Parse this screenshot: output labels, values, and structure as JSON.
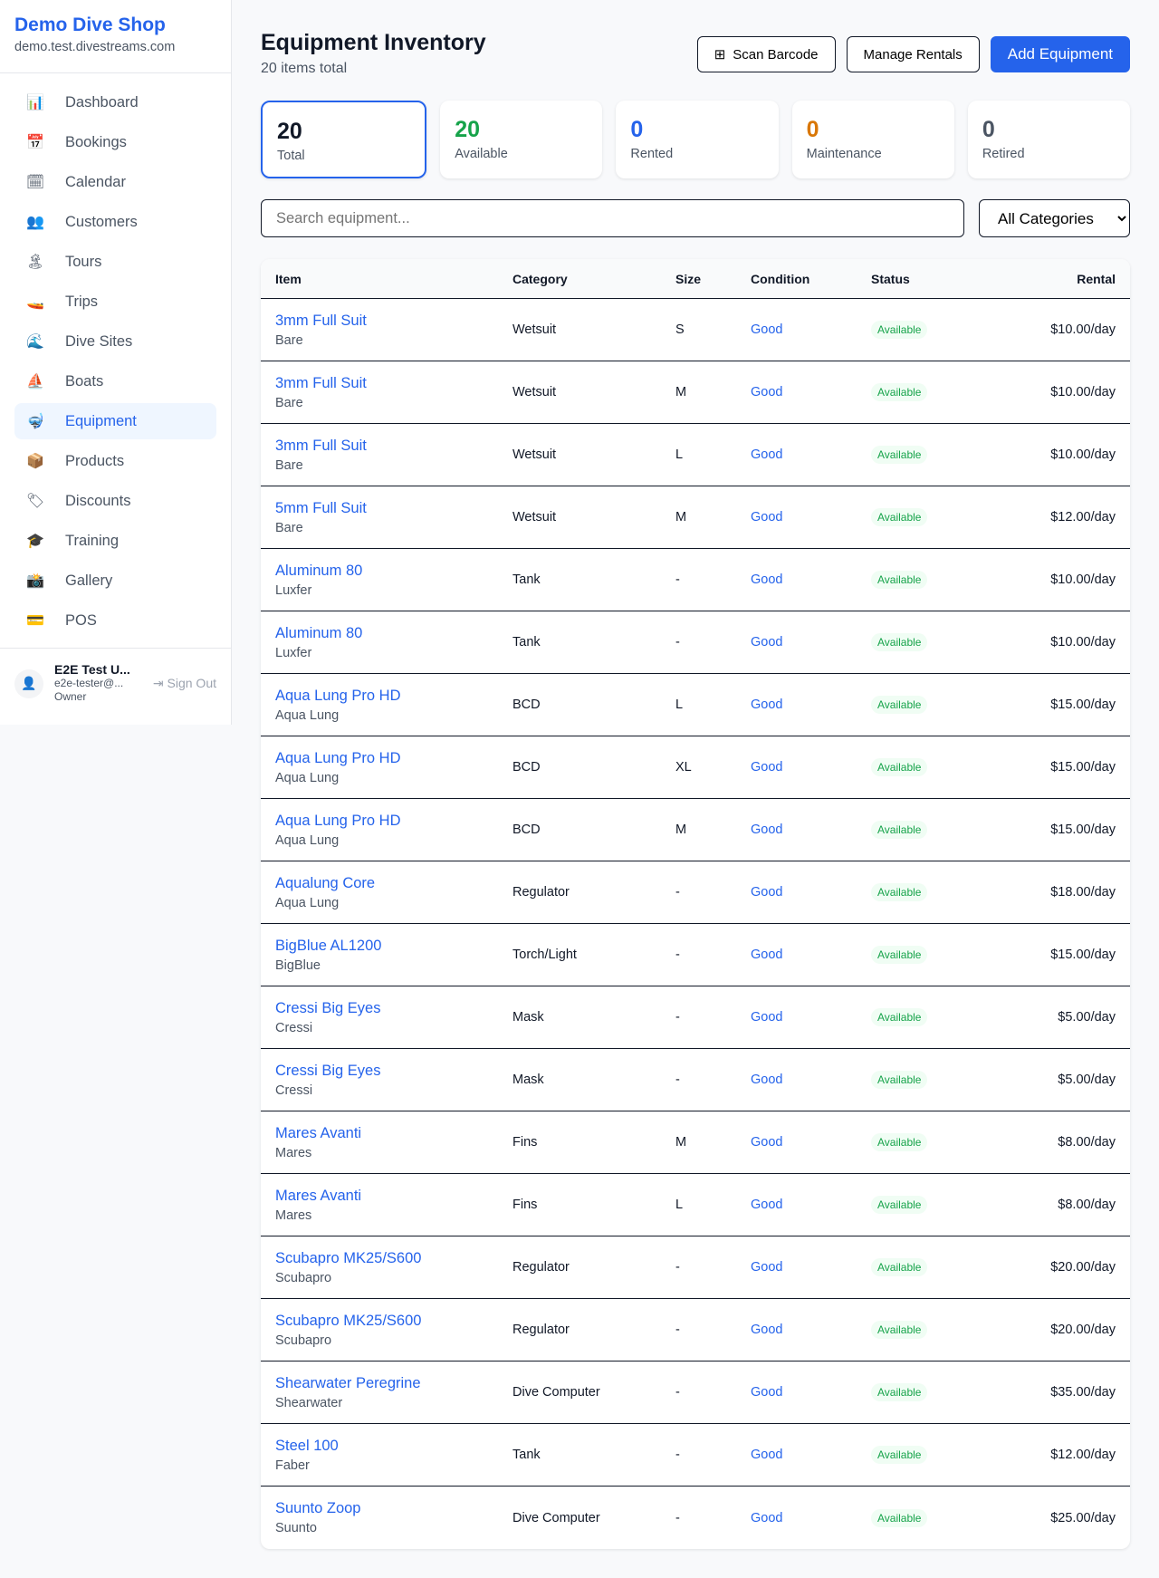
{
  "sidebar": {
    "brand": "Demo Dive Shop",
    "domain": "demo.test.divestreams.com",
    "items": [
      {
        "label": "Dashboard",
        "icon": "📊"
      },
      {
        "label": "Bookings",
        "icon": "📅"
      },
      {
        "label": "Calendar",
        "icon": "🗓"
      },
      {
        "label": "Customers",
        "icon": "👥"
      },
      {
        "label": "Tours",
        "icon": "🏝"
      },
      {
        "label": "Trips",
        "icon": "🚤"
      },
      {
        "label": "Dive Sites",
        "icon": "🌊"
      },
      {
        "label": "Boats",
        "icon": "⛵"
      },
      {
        "label": "Equipment",
        "icon": "🤿"
      },
      {
        "label": "Products",
        "icon": "📦"
      },
      {
        "label": "Discounts",
        "icon": "🏷"
      },
      {
        "label": "Training",
        "icon": "🎓"
      },
      {
        "label": "Gallery",
        "icon": "📸"
      },
      {
        "label": "POS",
        "icon": "💳"
      }
    ],
    "active": "Equipment",
    "user": {
      "name": "E2E Test U...",
      "email": "e2e-tester@...",
      "role": "Owner",
      "sign_out": "Sign Out"
    }
  },
  "header": {
    "title": "Equipment Inventory",
    "subtitle": "20 items total",
    "scan": "Scan Barcode",
    "manage": "Manage Rentals",
    "add": "Add Equipment"
  },
  "stats": [
    {
      "value": "20",
      "label": "Total",
      "color": "#111827"
    },
    {
      "value": "20",
      "label": "Available",
      "color": "#16a34a"
    },
    {
      "value": "0",
      "label": "Rented",
      "color": "#2563eb"
    },
    {
      "value": "0",
      "label": "Maintenance",
      "color": "#d97706"
    },
    {
      "value": "0",
      "label": "Retired",
      "color": "#4b5563"
    }
  ],
  "filters": {
    "search_placeholder": "Search equipment...",
    "category": "All Categories"
  },
  "table": {
    "columns": [
      "Item",
      "Category",
      "Size",
      "Condition",
      "Status",
      "Rental"
    ],
    "rows": [
      [
        "3mm Full Suit",
        "Bare",
        "Wetsuit",
        "S",
        "Good",
        "Available",
        "$10.00/day"
      ],
      [
        "3mm Full Suit",
        "Bare",
        "Wetsuit",
        "M",
        "Good",
        "Available",
        "$10.00/day"
      ],
      [
        "3mm Full Suit",
        "Bare",
        "Wetsuit",
        "L",
        "Good",
        "Available",
        "$10.00/day"
      ],
      [
        "5mm Full Suit",
        "Bare",
        "Wetsuit",
        "M",
        "Good",
        "Available",
        "$12.00/day"
      ],
      [
        "Aluminum 80",
        "Luxfer",
        "Tank",
        "-",
        "Good",
        "Available",
        "$10.00/day"
      ],
      [
        "Aluminum 80",
        "Luxfer",
        "Tank",
        "-",
        "Good",
        "Available",
        "$10.00/day"
      ],
      [
        "Aqua Lung Pro HD",
        "Aqua Lung",
        "BCD",
        "L",
        "Good",
        "Available",
        "$15.00/day"
      ],
      [
        "Aqua Lung Pro HD",
        "Aqua Lung",
        "BCD",
        "XL",
        "Good",
        "Available",
        "$15.00/day"
      ],
      [
        "Aqua Lung Pro HD",
        "Aqua Lung",
        "BCD",
        "M",
        "Good",
        "Available",
        "$15.00/day"
      ],
      [
        "Aqualung Core",
        "Aqua Lung",
        "Regulator",
        "-",
        "Good",
        "Available",
        "$18.00/day"
      ],
      [
        "BigBlue AL1200",
        "BigBlue",
        "Torch/Light",
        "-",
        "Good",
        "Available",
        "$15.00/day"
      ],
      [
        "Cressi Big Eyes",
        "Cressi",
        "Mask",
        "-",
        "Good",
        "Available",
        "$5.00/day"
      ],
      [
        "Cressi Big Eyes",
        "Cressi",
        "Mask",
        "-",
        "Good",
        "Available",
        "$5.00/day"
      ],
      [
        "Mares Avanti",
        "Mares",
        "Fins",
        "M",
        "Good",
        "Available",
        "$8.00/day"
      ],
      [
        "Mares Avanti",
        "Mares",
        "Fins",
        "L",
        "Good",
        "Available",
        "$8.00/day"
      ],
      [
        "Scubapro MK25/S600",
        "Scubapro",
        "Regulator",
        "-",
        "Good",
        "Available",
        "$20.00/day"
      ],
      [
        "Scubapro MK25/S600",
        "Scubapro",
        "Regulator",
        "-",
        "Good",
        "Available",
        "$20.00/day"
      ],
      [
        "Shearwater Peregrine",
        "Shearwater",
        "Dive Computer",
        "-",
        "Good",
        "Available",
        "$35.00/day"
      ],
      [
        "Steel 100",
        "Faber",
        "Tank",
        "-",
        "Good",
        "Available",
        "$12.00/day"
      ],
      [
        "Suunto Zoop",
        "Suunto",
        "Dive Computer",
        "-",
        "Good",
        "Available",
        "$25.00/day"
      ]
    ]
  }
}
